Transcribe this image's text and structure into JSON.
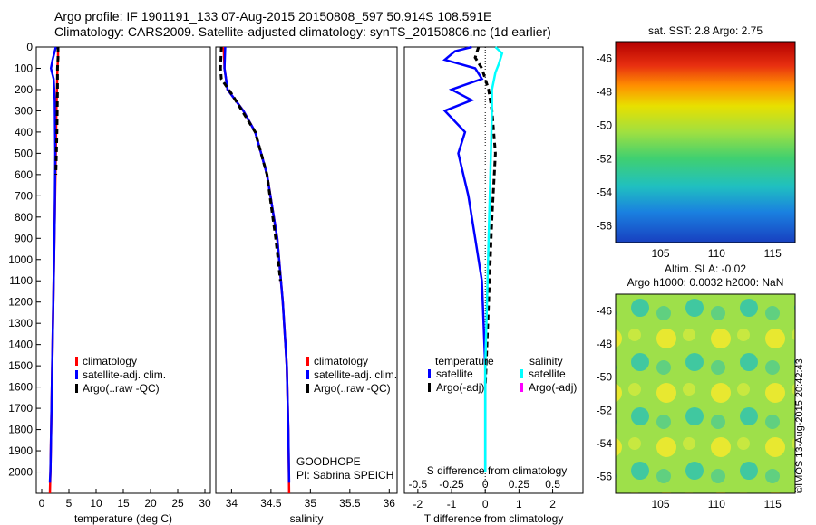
{
  "titles": {
    "line1": "Argo profile: IF 1901191_133 07-Aug-2015 20150808_597 50.914S 108.591E",
    "line2": "Climatology: CARS2009. Satellite-adjusted climatology: synTS_20150806.nc (1d earlier)"
  },
  "stamp": "©IMOS 13-Aug-2015 20:42:43",
  "chart_data": [
    {
      "id": "temperature",
      "type": "line",
      "xlabel": "temperature (deg C)",
      "ylabel": "",
      "xlim": [
        -1,
        31
      ],
      "ylim": [
        2100,
        0
      ],
      "xticks": [
        "0",
        "5",
        "10",
        "15",
        "20",
        "25",
        "30"
      ],
      "yticks": [
        "0",
        "100",
        "200",
        "300",
        "400",
        "500",
        "600",
        "700",
        "800",
        "900",
        "1000",
        "1100",
        "1200",
        "1300",
        "1400",
        "1500",
        "1600",
        "1700",
        "1800",
        "1900",
        "2000"
      ],
      "legend": [
        "climatology",
        "satellite-adj. clim.",
        "Argo(..raw -QC)"
      ],
      "legend_colors": [
        "#ff0000",
        "#0000ff",
        "#000000"
      ],
      "series": [
        {
          "name": "climatology",
          "color": "#ff0000",
          "style": "solid",
          "x": [
            3.0,
            3.0,
            2.9,
            2.8,
            2.7,
            2.6,
            2.4,
            2.2,
            2.0,
            1.8,
            1.6,
            1.5
          ],
          "y": [
            0,
            50,
            100,
            200,
            300,
            500,
            800,
            1100,
            1400,
            1700,
            2000,
            2100
          ]
        },
        {
          "name": "satellite-adj. clim.",
          "color": "#0000ff",
          "style": "solid",
          "x": [
            2.6,
            2.0,
            1.7,
            2.2,
            2.4,
            2.5,
            2.4,
            2.2,
            2.0,
            1.8,
            1.6,
            1.5
          ],
          "y": [
            0,
            60,
            100,
            150,
            250,
            500,
            800,
            1100,
            1400,
            1700,
            2000,
            2050
          ]
        },
        {
          "name": "Argo(..raw -QC)",
          "color": "#000000",
          "style": "dashed",
          "x": [
            3.0,
            3.0,
            2.9,
            2.9,
            2.8,
            2.6
          ],
          "y": [
            0,
            50,
            100,
            200,
            400,
            600
          ]
        }
      ]
    },
    {
      "id": "salinity",
      "type": "line",
      "xlabel": "salinity",
      "ylabel": "",
      "xlim": [
        33.8,
        36.1
      ],
      "ylim": [
        2100,
        0
      ],
      "xticks": [
        "34",
        "34.5",
        "35",
        "35.5",
        "36"
      ],
      "legend": [
        "climatology",
        "satellite-adj. clim.",
        "Argo(..raw -QC)"
      ],
      "legend_colors": [
        "#ff0000",
        "#0000ff",
        "#000000"
      ],
      "annotations": [
        "GOODHOPE",
        "PI: Sabrina SPEICH"
      ],
      "series": [
        {
          "name": "climatology",
          "color": "#ff0000",
          "style": "solid",
          "x": [
            33.9,
            33.91,
            33.95,
            34.05,
            34.15,
            34.3,
            34.45,
            34.58,
            34.65,
            34.7,
            34.72,
            34.73
          ],
          "y": [
            0,
            100,
            200,
            250,
            300,
            400,
            600,
            900,
            1200,
            1500,
            1800,
            2100
          ]
        },
        {
          "name": "satellite-adj. clim.",
          "color": "#0000ff",
          "style": "solid",
          "x": [
            33.92,
            33.91,
            33.95,
            34.05,
            34.15,
            34.3,
            34.45,
            34.58,
            34.65,
            34.7,
            34.72,
            34.73
          ],
          "y": [
            0,
            100,
            200,
            250,
            300,
            400,
            600,
            900,
            1200,
            1500,
            1800,
            2050
          ]
        },
        {
          "name": "Argo(..raw -QC)",
          "color": "#000000",
          "style": "dashed",
          "x": [
            33.87,
            33.86,
            33.87,
            34.0,
            34.1,
            34.3,
            34.45,
            34.56,
            34.62
          ],
          "y": [
            0,
            100,
            150,
            220,
            280,
            400,
            600,
            900,
            1100
          ]
        }
      ]
    },
    {
      "id": "difference",
      "type": "line",
      "xlabel": "T difference from climatology",
      "xlabel_top": "S difference from climatology",
      "xlim": [
        -2.4,
        2.9
      ],
      "ylim": [
        2100,
        0
      ],
      "xticks": [
        "-2",
        "-1",
        "0",
        "1",
        "2"
      ],
      "xticks_top": [
        "-0.5",
        "-0.25",
        "0",
        "0.25",
        "0.5"
      ],
      "legend_headers": [
        "temperature",
        "salinity"
      ],
      "legend_left": [
        "satellite",
        "Argo(-adj)"
      ],
      "legend_left_colors": [
        "#0000ff",
        "#000000"
      ],
      "legend_right": [
        "satellite",
        "Argo(-adj)"
      ],
      "legend_right_colors": [
        "#00ffff",
        "#ff00ff"
      ],
      "series": [
        {
          "name": "satellite",
          "color": "#0000ff",
          "style": "solid",
          "x": [
            -0.4,
            -0.9,
            -1.2,
            -0.3,
            -0.1,
            -1.0,
            -0.4,
            -1.2,
            -0.6,
            -0.8,
            -0.5,
            -0.3,
            -0.1,
            0.0,
            0.0
          ],
          "y": [
            0,
            20,
            60,
            100,
            150,
            200,
            250,
            300,
            400,
            500,
            700,
            900,
            1100,
            1500,
            2000
          ]
        },
        {
          "name": "Argo(-adj)",
          "color": "#000000",
          "style": "dashed",
          "x": [
            -0.2,
            -0.3,
            -0.1,
            0.1,
            0.2,
            0.3,
            0.2,
            0.1,
            0.0
          ],
          "y": [
            0,
            50,
            100,
            200,
            300,
            500,
            800,
            1200,
            1600
          ]
        },
        {
          "name": "satellite",
          "color": "#00ffff",
          "style": "solid",
          "x": [
            0.3,
            0.5,
            0.4,
            0.3,
            0.2,
            0.2,
            0.15,
            0.1,
            0.05,
            0.0,
            0.0
          ],
          "y": [
            0,
            30,
            80,
            120,
            200,
            300,
            600,
            900,
            1200,
            1500,
            2000
          ]
        }
      ]
    },
    {
      "id": "sst-map",
      "type": "heatmap",
      "title": "sat. SST: 2.8 Argo: 2.75",
      "xlim": [
        101,
        117
      ],
      "ylim": [
        -57,
        -45
      ],
      "xticks": [
        "105",
        "110",
        "115"
      ],
      "yticks": [
        "-46",
        "-48",
        "-50",
        "-52",
        "-54",
        "-56"
      ]
    },
    {
      "id": "sla-map",
      "type": "heatmap",
      "title_line1": "Altim. SLA: -0.02",
      "title_line2": "Argo h1000: 0.0032 h2000: NaN",
      "xlim": [
        101,
        117
      ],
      "ylim": [
        -57,
        -45
      ],
      "xticks": [
        "105",
        "110",
        "115"
      ],
      "yticks": [
        "-46",
        "-48",
        "-50",
        "-52",
        "-54",
        "-56"
      ]
    }
  ]
}
